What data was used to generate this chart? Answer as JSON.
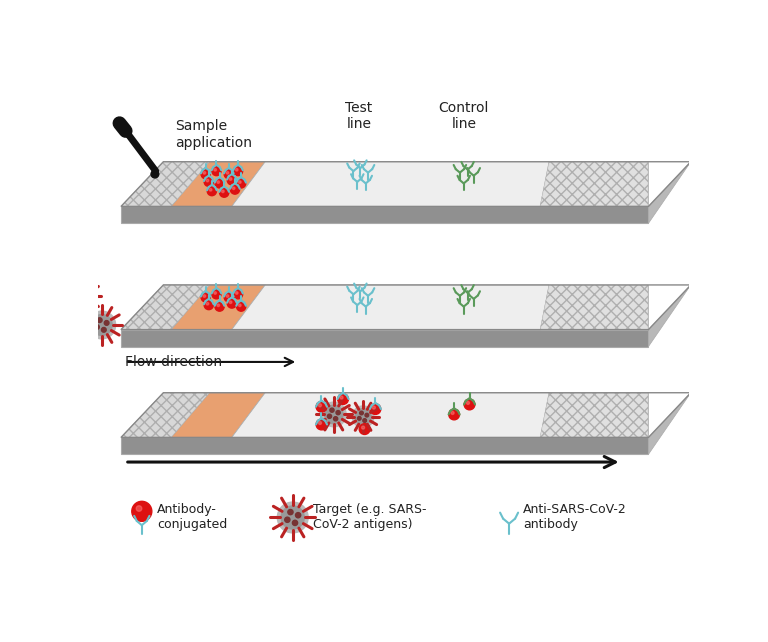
{
  "background_color": "#ffffff",
  "strip": {
    "sample_pad_color": "#d8d8d8",
    "conjugate_pad_color": "#e8a070",
    "membrane_color": "#eeeeee",
    "absorbent_color": "#e0e0e0",
    "gray_band_color": "#909090",
    "border_color": "#aaaaaa",
    "bottom_face_color": "#c0c0c0",
    "right_face_color": "#d0d0d0"
  },
  "colors": {
    "red_bead": "#dd1111",
    "antibody_blue": "#6ac0cc",
    "antibody_green": "#5a9a5a",
    "arrow_black": "#111111",
    "text_dark": "#222222",
    "dropper_color": "#111111"
  },
  "labels": {
    "sample_application": "Sample\napplication",
    "test_line": "Test\nline",
    "control_line": "Control\nline",
    "flow_direction": "Flow direction",
    "legend_antibody": "Antibody-\nconjugated",
    "legend_target": "Target (e.g. SARS-\nCoV-2 antigens)",
    "legend_anti_sars": "Anti-SARS-CoV-2\nantibody"
  },
  "font_sizes": {
    "label": 10,
    "legend": 9,
    "flow": 10
  }
}
